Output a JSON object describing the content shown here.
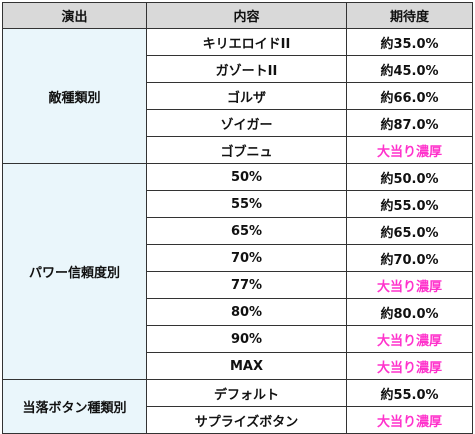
{
  "header": {
    "col1": "演出",
    "col2": "内容",
    "col3": "期待度"
  },
  "groups": [
    {
      "name": "敵種類別",
      "rows": [
        {
          "content": "キリエロイドII",
          "expect": "約35.0%",
          "pink": false
        },
        {
          "content": "ガゾートII",
          "expect": "約45.0%",
          "pink": false
        },
        {
          "content": "ゴルザ",
          "expect": "約66.0%",
          "pink": false
        },
        {
          "content": "ゾイガー",
          "expect": "約87.0%",
          "pink": false
        },
        {
          "content": "ゴブニュ",
          "expect": "大当り濃厚",
          "pink": true
        }
      ]
    },
    {
      "name": "パワー信頼度別",
      "rows": [
        {
          "content": "50%",
          "expect": "約50.0%",
          "pink": false
        },
        {
          "content": "55%",
          "expect": "約55.0%",
          "pink": false
        },
        {
          "content": "65%",
          "expect": "約65.0%",
          "pink": false
        },
        {
          "content": "70%",
          "expect": "約70.0%",
          "pink": false
        },
        {
          "content": "77%",
          "expect": "大当り濃厚",
          "pink": true
        },
        {
          "content": "80%",
          "expect": "約80.0%",
          "pink": false
        },
        {
          "content": "90%",
          "expect": "大当り濃厚",
          "pink": true
        },
        {
          "content": "MAX",
          "expect": "大当り濃厚",
          "pink": true
        }
      ]
    },
    {
      "name": "当落ボタン種類別",
      "rows": [
        {
          "content": "デフォルト",
          "expect": "約55.0%",
          "pink": false
        },
        {
          "content": "サプライズボタン",
          "expect": "大当り濃厚",
          "pink": true
        }
      ]
    }
  ],
  "colors": {
    "header_bg": "#d9d9d9",
    "group_bg": "#eaf6fb",
    "pink_text": "#ff33cc"
  }
}
